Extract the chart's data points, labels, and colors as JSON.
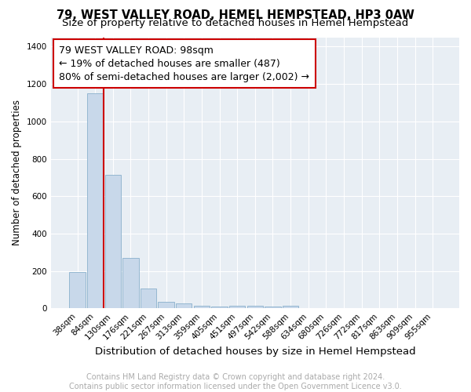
{
  "title": "79, WEST VALLEY ROAD, HEMEL HEMPSTEAD, HP3 0AW",
  "subtitle": "Size of property relative to detached houses in Hemel Hempstead",
  "xlabel": "Distribution of detached houses by size in Hemel Hempstead",
  "ylabel": "Number of detached properties",
  "footnote": "Contains HM Land Registry data © Crown copyright and database right 2024.\nContains public sector information licensed under the Open Government Licence v3.0.",
  "bar_labels": [
    "38sqm",
    "84sqm",
    "130sqm",
    "176sqm",
    "221sqm",
    "267sqm",
    "313sqm",
    "359sqm",
    "405sqm",
    "451sqm",
    "497sqm",
    "542sqm",
    "588sqm",
    "634sqm",
    "680sqm",
    "726sqm",
    "772sqm",
    "817sqm",
    "863sqm",
    "909sqm",
    "955sqm"
  ],
  "bar_values": [
    195,
    1150,
    715,
    268,
    107,
    33,
    27,
    15,
    10,
    12,
    12,
    8,
    12,
    0,
    0,
    0,
    0,
    0,
    0,
    0,
    0
  ],
  "bar_color": "#c8d8ea",
  "bar_edge_color": "#8ab0cc",
  "red_line_x": 1.5,
  "annotation_text_line1": "79 WEST VALLEY ROAD: 98sqm",
  "annotation_text_line2": "← 19% of detached houses are smaller (487)",
  "annotation_text_line3": "80% of semi-detached houses are larger (2,002) →",
  "annotation_box_edge_color": "#cc0000",
  "ylim": [
    0,
    1450
  ],
  "yticks": [
    0,
    200,
    400,
    600,
    800,
    1000,
    1200,
    1400
  ],
  "background_color": "#e8eef4",
  "grid_color": "#ffffff",
  "title_fontsize": 10.5,
  "subtitle_fontsize": 9.5,
  "xlabel_fontsize": 9.5,
  "ylabel_fontsize": 8.5,
  "tick_fontsize": 7.5,
  "annotation_fontsize": 9,
  "footnote_fontsize": 7,
  "footnote_color": "#aaaaaa"
}
